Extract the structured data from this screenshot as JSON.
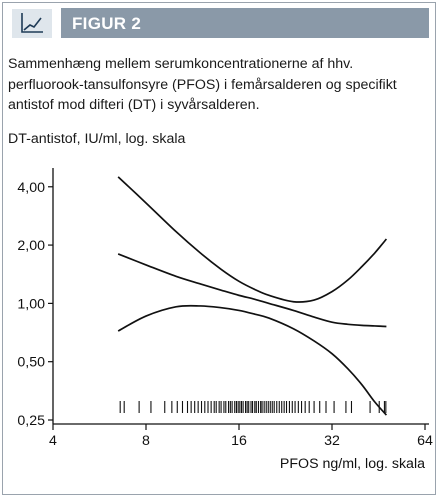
{
  "figure_label": "FIGUR 2",
  "caption": "Sammenhæng mellem serumkoncentrationerne af hhv. perfluorook-tansulfonsyre (PFOS) i femårsalderen og specifikt antistof mod difteri (DT) i syvårsalderen.",
  "colors": {
    "title_bar": "#8a99a8",
    "icon_bg": "#dfe6ec",
    "icon_line": "#1f3b57",
    "ink": "#111111"
  },
  "chart_data": {
    "type": "line",
    "title": "",
    "ylabel": "DT-antistof, IU/ml, log. skala",
    "xlabel": "PFOS ng/ml, log. skala",
    "x_scale": "log2",
    "y_scale": "log2",
    "xlim": [
      4,
      64
    ],
    "ylim": [
      0.25,
      5.0
    ],
    "x_ticks": [
      4,
      8,
      16,
      32,
      64
    ],
    "x_tick_labels": [
      "4",
      "8",
      "16",
      "32",
      "64"
    ],
    "y_ticks": [
      0.25,
      0.5,
      1.0,
      2.0,
      4.0
    ],
    "y_tick_labels": [
      "0,25",
      "0,50",
      "1,00",
      "2,00",
      "4,00"
    ],
    "grid": false,
    "series": [
      {
        "role": "estimate",
        "x": [
          6.5,
          8,
          10,
          12,
          14,
          16,
          18,
          20,
          24,
          28,
          32,
          36,
          40,
          44,
          48
        ],
        "y": [
          1.8,
          1.58,
          1.38,
          1.26,
          1.17,
          1.1,
          1.05,
          1.0,
          0.92,
          0.85,
          0.8,
          0.78,
          0.77,
          0.765,
          0.76
        ]
      },
      {
        "role": "upper",
        "x": [
          6.5,
          8,
          10,
          12,
          14,
          16,
          18,
          20,
          24,
          28,
          32,
          36,
          40,
          44,
          48
        ],
        "y": [
          4.5,
          3.3,
          2.35,
          1.82,
          1.5,
          1.3,
          1.18,
          1.1,
          1.02,
          1.04,
          1.15,
          1.32,
          1.55,
          1.82,
          2.15
        ]
      },
      {
        "role": "lower",
        "x": [
          6.5,
          8,
          10,
          12,
          14,
          16,
          18,
          20,
          24,
          28,
          32,
          36,
          40,
          44,
          48
        ],
        "y": [
          0.72,
          0.86,
          0.96,
          0.97,
          0.95,
          0.92,
          0.88,
          0.84,
          0.74,
          0.64,
          0.55,
          0.46,
          0.38,
          0.31,
          0.265
        ]
      }
    ],
    "rug_x": [
      6.6,
      6.8,
      7.6,
      8.3,
      9.2,
      9.7,
      10.1,
      10.5,
      10.9,
      11.2,
      11.5,
      11.8,
      12.1,
      12.4,
      12.7,
      13.0,
      13.3,
      13.5,
      13.8,
      14.0,
      14.3,
      14.5,
      14.8,
      15.0,
      15.2,
      15.5,
      15.7,
      15.9,
      16.1,
      16.3,
      16.5,
      16.8,
      17.0,
      17.2,
      17.5,
      17.7,
      18.0,
      18.2,
      18.5,
      18.8,
      19.0,
      19.3,
      19.6,
      19.9,
      20.2,
      20.5,
      20.8,
      21.2,
      21.6,
      22.0,
      22.4,
      22.8,
      23.3,
      23.8,
      24.3,
      24.9,
      25.5,
      26.2,
      27.0,
      28.0,
      29.2,
      30.6,
      32.5,
      35.5,
      37.0,
      42.5,
      45.5,
      47.3,
      47.8
    ]
  }
}
